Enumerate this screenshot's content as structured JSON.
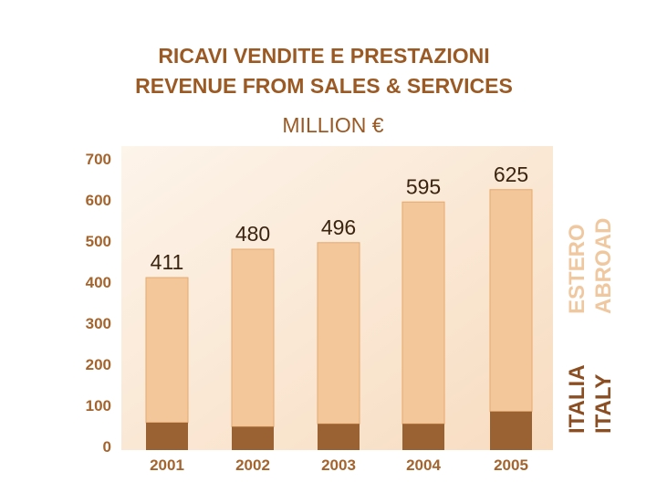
{
  "colors": {
    "abroad": "#f3c79a",
    "italy": "#9a6232",
    "text": "#9b5a24",
    "label_abroad": "#f0c8a0",
    "label_italy": "#8a4e22"
  },
  "chart_data": {
    "type": "bar",
    "stacked": true,
    "title": "RICAVI VENDITE E PRESTAZIONI",
    "subtitle": "REVENUE FROM SALES & SERVICES",
    "unit": "MILLION €",
    "categories": [
      "2001",
      "2002",
      "2003",
      "2004",
      "2005"
    ],
    "totals": [
      411,
      480,
      496,
      595,
      625
    ],
    "series": [
      {
        "name": "ITALIA ITALY",
        "values": [
          58,
          48,
          55,
          55,
          85
        ]
      },
      {
        "name": "ESTERO ABROAD",
        "values": [
          353,
          432,
          441,
          540,
          540
        ]
      }
    ],
    "yticks": [
      "700",
      "600",
      "500",
      "400",
      "300",
      "200",
      "100",
      "0"
    ],
    "ylim": [
      0,
      700
    ],
    "legend_placement": "right",
    "grid": false
  },
  "legend": {
    "abroad_line1": "ESTERO",
    "abroad_line2": "ABROAD",
    "italy_line1": "ITALIA",
    "italy_line2": "ITALY"
  }
}
